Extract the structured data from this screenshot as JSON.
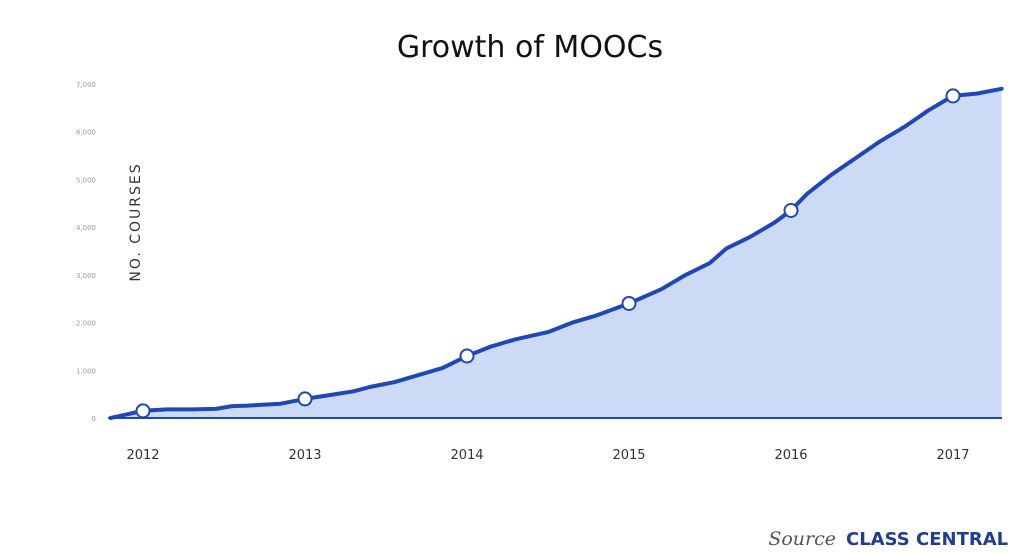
{
  "chart_data": {
    "type": "area",
    "title": "Growth of MOOCs",
    "ylabel": "NO. COURSES",
    "xlabel": "",
    "x_tick_labels": [
      "2012",
      "2013",
      "2014",
      "2015",
      "2016",
      "2017"
    ],
    "y_tick_labels": [
      "0",
      "1,000",
      "2,000",
      "3,000",
      "4,000",
      "5,000",
      "6,000",
      "7,000"
    ],
    "ylim": [
      0,
      7000
    ],
    "xlim": [
      2011.8,
      2017.3
    ],
    "grid": false,
    "legend": "none",
    "colors": {
      "line": "#1f47b8",
      "fill": "#ccdaf5",
      "marker_fill": "#ffffff",
      "baseline": "#1f47b8"
    },
    "series": [
      {
        "x": [
          2011.8,
          2012.0,
          2012.15,
          2012.3,
          2012.45,
          2012.55,
          2012.65,
          2012.75,
          2012.85,
          2013.0,
          2013.15,
          2013.3,
          2013.4,
          2013.55,
          2013.7,
          2013.85,
          2014.0,
          2014.15,
          2014.3,
          2014.5,
          2014.65,
          2014.8,
          2015.0,
          2015.2,
          2015.35,
          2015.5,
          2015.6,
          2015.75,
          2015.9,
          2016.0,
          2016.1,
          2016.25,
          2016.4,
          2016.55,
          2016.7,
          2016.85,
          2017.0,
          2017.15,
          2017.3
        ],
        "y": [
          0,
          150,
          180,
          180,
          190,
          250,
          260,
          280,
          300,
          400,
          480,
          560,
          650,
          750,
          900,
          1050,
          1300,
          1500,
          1650,
          1800,
          2000,
          2150,
          2400,
          2700,
          3000,
          3250,
          3550,
          3800,
          4100,
          4350,
          4700,
          5100,
          5450,
          5800,
          6100,
          6450,
          6750,
          6800,
          6900
        ]
      }
    ],
    "markers": {
      "x": [
        2012.0,
        2013.0,
        2014.0,
        2015.0,
        2016.0,
        2017.0
      ],
      "y": [
        150,
        400,
        1300,
        2400,
        4350,
        6750
      ]
    },
    "annotations": {
      "source_prefix": "Source",
      "source_brand": "CLASS CENTRAL"
    }
  }
}
